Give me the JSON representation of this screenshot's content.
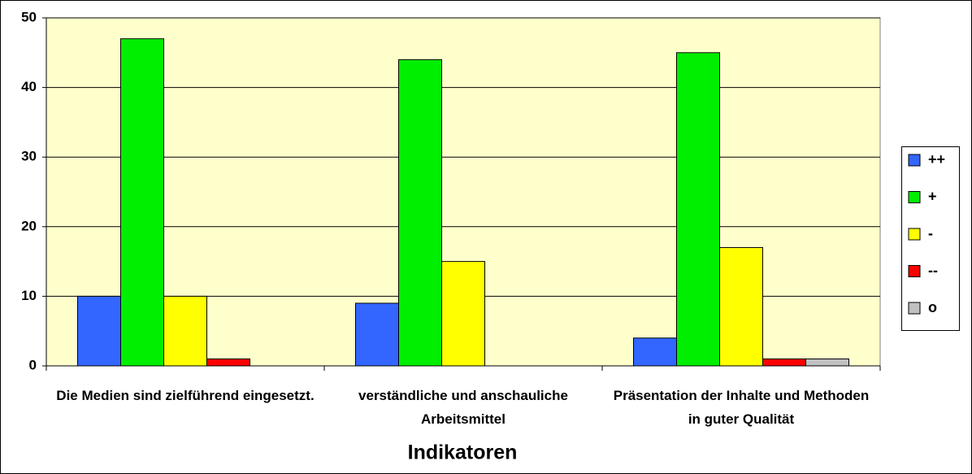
{
  "chart_data": {
    "type": "bar",
    "categories": [
      "Die Medien sind zielführend eingesetzt.",
      "verständliche und anschauliche Arbeitsmittel",
      "Präsentation der Inhalte und Methoden in guter Qualität"
    ],
    "series": [
      {
        "name": "++",
        "color": "#3366ff",
        "values": [
          10,
          9,
          4
        ]
      },
      {
        "name": "+",
        "color": "#00ee00",
        "values": [
          47,
          44,
          45
        ]
      },
      {
        "name": "-",
        "color": "#ffff00",
        "values": [
          10,
          15,
          17
        ]
      },
      {
        "name": "--",
        "color": "#ff0000",
        "values": [
          1,
          0,
          1
        ]
      },
      {
        "name": "o",
        "color": "#c0c0c0",
        "values": [
          0,
          0,
          1
        ]
      }
    ],
    "x_label": "Indikatoren",
    "ylim": [
      0,
      50
    ],
    "yticks": [
      0,
      10,
      20,
      30,
      40,
      50
    ],
    "grid": true,
    "legend": "right"
  }
}
